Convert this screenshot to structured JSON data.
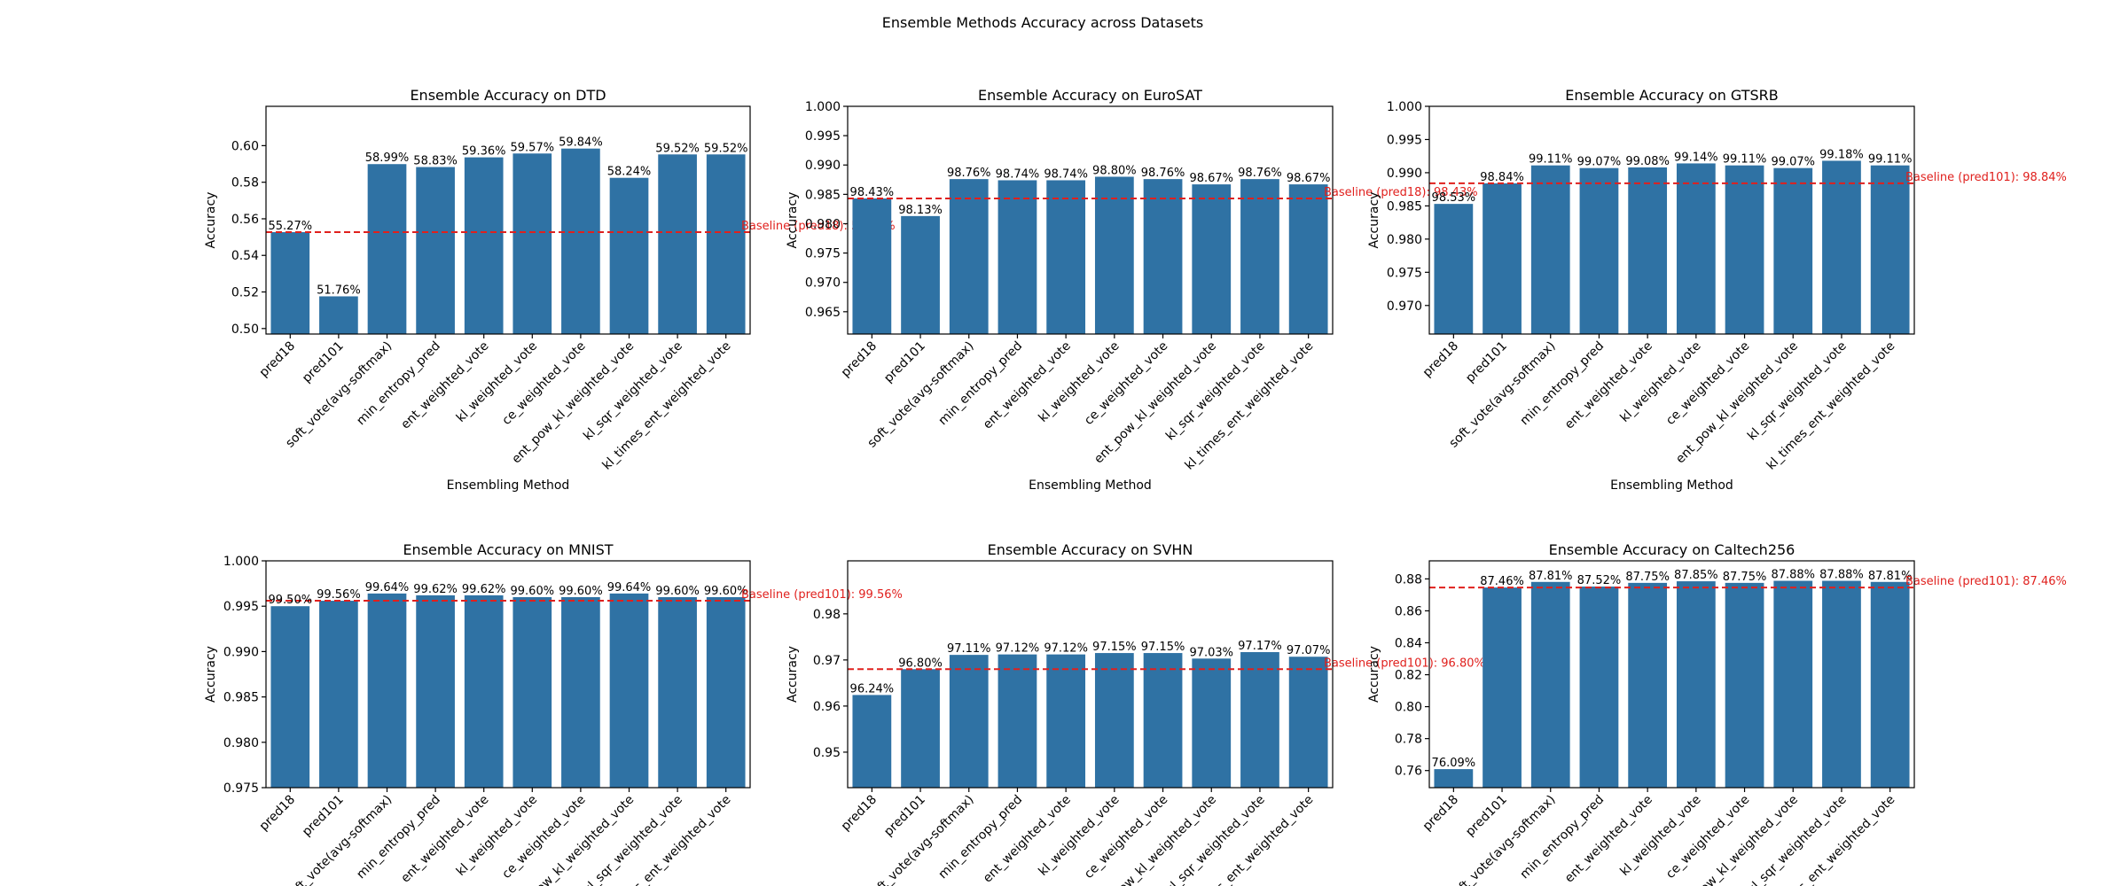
{
  "figure_title": "Ensemble Methods Accuracy across Datasets",
  "colors": {
    "bar": "#2f72a4",
    "baseline": "#e0201d",
    "axis": "#000000",
    "text": "#000000"
  },
  "chart_data": [
    {
      "type": "bar",
      "title": "Ensemble Accuracy on DTD",
      "xlabel": "Ensembling Method",
      "ylabel": "Accuracy",
      "categories": [
        "pred18",
        "pred101",
        "soft_vote(avg-softmax)",
        "min_entropy_pred",
        "ent_weighted_vote",
        "kl_weighted_vote",
        "ce_weighted_vote",
        "ent_pow_kl_weighted_vote",
        "kl_sqr_weighted_vote",
        "kl_times_ent_weighted_vote"
      ],
      "values": [
        0.5527,
        0.5176,
        0.5899,
        0.5883,
        0.5936,
        0.5957,
        0.5984,
        0.5824,
        0.5952,
        0.5952
      ],
      "data_labels": [
        "55.27%",
        "51.76%",
        "58.99%",
        "58.83%",
        "59.36%",
        "59.57%",
        "59.84%",
        "58.24%",
        "59.52%",
        "59.52%"
      ],
      "ylim": [
        0.497,
        0.6215
      ],
      "yticks": [
        0.5,
        0.52,
        0.54,
        0.56,
        0.58,
        0.6
      ],
      "ytick_labels": [
        "0.50",
        "0.52",
        "0.54",
        "0.56",
        "0.58",
        "0.60"
      ],
      "baseline": {
        "value": 0.5527,
        "label": "Baseline (pred18): 55.27%"
      }
    },
    {
      "type": "bar",
      "title": "Ensemble Accuracy on EuroSAT",
      "xlabel": "Ensembling Method",
      "ylabel": "Accuracy",
      "categories": [
        "pred18",
        "pred101",
        "soft_vote(avg-softmax)",
        "min_entropy_pred",
        "ent_weighted_vote",
        "kl_weighted_vote",
        "ce_weighted_vote",
        "ent_pow_kl_weighted_vote",
        "kl_sqr_weighted_vote",
        "kl_times_ent_weighted_vote"
      ],
      "values": [
        0.9843,
        0.9813,
        0.9876,
        0.9874,
        0.9874,
        0.988,
        0.9876,
        0.9867,
        0.9876,
        0.9867
      ],
      "data_labels": [
        "98.43%",
        "98.13%",
        "98.76%",
        "98.74%",
        "98.74%",
        "98.80%",
        "98.76%",
        "98.67%",
        "98.76%",
        "98.67%"
      ],
      "ylim": [
        0.9612,
        1.0
      ],
      "yticks": [
        0.965,
        0.97,
        0.975,
        0.98,
        0.985,
        0.99,
        0.995,
        1.0
      ],
      "ytick_labels": [
        "0.965",
        "0.970",
        "0.975",
        "0.980",
        "0.985",
        "0.990",
        "0.995",
        "1.000"
      ],
      "baseline": {
        "value": 0.9843,
        "label": "Baseline (pred18): 98.43%"
      }
    },
    {
      "type": "bar",
      "title": "Ensemble Accuracy on GTSRB",
      "xlabel": "Ensembling Method",
      "ylabel": "Accuracy",
      "categories": [
        "pred18",
        "pred101",
        "soft_vote(avg-softmax)",
        "min_entropy_pred",
        "ent_weighted_vote",
        "kl_weighted_vote",
        "ce_weighted_vote",
        "ent_pow_kl_weighted_vote",
        "kl_sqr_weighted_vote",
        "kl_times_ent_weighted_vote"
      ],
      "values": [
        0.9853,
        0.9884,
        0.9911,
        0.9907,
        0.9908,
        0.9914,
        0.9911,
        0.9907,
        0.9918,
        0.9911
      ],
      "data_labels": [
        "98.53%",
        "98.84%",
        "99.11%",
        "99.07%",
        "99.08%",
        "99.14%",
        "99.11%",
        "99.07%",
        "99.18%",
        "99.11%"
      ],
      "ylim": [
        0.9657,
        1.0
      ],
      "yticks": [
        0.97,
        0.975,
        0.98,
        0.985,
        0.99,
        0.995,
        1.0
      ],
      "ytick_labels": [
        "0.970",
        "0.975",
        "0.980",
        "0.985",
        "0.990",
        "0.995",
        "1.000"
      ],
      "baseline": {
        "value": 0.9884,
        "label": "Baseline (pred101): 98.84%"
      }
    },
    {
      "type": "bar",
      "title": "Ensemble Accuracy on MNIST",
      "xlabel": "",
      "ylabel": "Accuracy",
      "categories": [
        "pred18",
        "pred101",
        "soft_vote(avg-softmax)",
        "min_entropy_pred",
        "ent_weighted_vote",
        "kl_weighted_vote",
        "ce_weighted_vote",
        "ent_pow_kl_weighted_vote",
        "kl_sqr_weighted_vote",
        "kl_times_ent_weighted_vote"
      ],
      "values": [
        0.995,
        0.9956,
        0.9964,
        0.9962,
        0.9962,
        0.996,
        0.996,
        0.9964,
        0.996,
        0.996
      ],
      "data_labels": [
        "99.50%",
        "99.56%",
        "99.64%",
        "99.62%",
        "99.62%",
        "99.60%",
        "99.60%",
        "99.64%",
        "99.60%",
        "99.60%"
      ],
      "ylim": [
        0.975,
        1.0
      ],
      "yticks": [
        0.975,
        0.98,
        0.985,
        0.99,
        0.995,
        1.0
      ],
      "ytick_labels": [
        "0.975",
        "0.980",
        "0.985",
        "0.990",
        "0.995",
        "1.000"
      ],
      "baseline": {
        "value": 0.9956,
        "label": "Baseline (pred101): 99.56%"
      }
    },
    {
      "type": "bar",
      "title": "Ensemble Accuracy on SVHN",
      "xlabel": "",
      "ylabel": "Accuracy",
      "categories": [
        "pred18",
        "pred101",
        "soft_vote(avg-softmax)",
        "min_entropy_pred",
        "ent_weighted_vote",
        "kl_weighted_vote",
        "ce_weighted_vote",
        "ent_pow_kl_weighted_vote",
        "kl_sqr_weighted_vote",
        "kl_times_ent_weighted_vote"
      ],
      "values": [
        0.9624,
        0.968,
        0.9711,
        0.9712,
        0.9712,
        0.9715,
        0.9715,
        0.9703,
        0.9717,
        0.9707
      ],
      "data_labels": [
        "96.24%",
        "96.80%",
        "97.11%",
        "97.12%",
        "97.12%",
        "97.15%",
        "97.15%",
        "97.03%",
        "97.17%",
        "97.07%"
      ],
      "ylim": [
        0.9423,
        0.9915
      ],
      "yticks": [
        0.95,
        0.96,
        0.97,
        0.98
      ],
      "ytick_labels": [
        "0.95",
        "0.96",
        "0.97",
        "0.98"
      ],
      "baseline": {
        "value": 0.968,
        "label": "Baseline (pred101): 96.80%"
      }
    },
    {
      "type": "bar",
      "title": "Ensemble Accuracy on Caltech256",
      "xlabel": "",
      "ylabel": "Accuracy",
      "categories": [
        "pred18",
        "pred101",
        "soft_vote(avg-softmax)",
        "min_entropy_pred",
        "ent_weighted_vote",
        "kl_weighted_vote",
        "ce_weighted_vote",
        "ent_pow_kl_weighted_vote",
        "kl_sqr_weighted_vote",
        "kl_times_ent_weighted_vote"
      ],
      "values": [
        0.7609,
        0.8746,
        0.8781,
        0.8752,
        0.8775,
        0.8785,
        0.8775,
        0.8788,
        0.8788,
        0.8781
      ],
      "data_labels": [
        "76.09%",
        "87.46%",
        "87.81%",
        "87.52%",
        "87.75%",
        "87.85%",
        "87.75%",
        "87.88%",
        "87.88%",
        "87.81%"
      ],
      "ylim": [
        0.7493,
        0.8913
      ],
      "yticks": [
        0.76,
        0.78,
        0.8,
        0.82,
        0.84,
        0.86,
        0.88
      ],
      "ytick_labels": [
        "0.76",
        "0.78",
        "0.80",
        "0.82",
        "0.84",
        "0.86",
        "0.88"
      ],
      "baseline": {
        "value": 0.8746,
        "label": "Baseline (pred101): 87.46%"
      }
    }
  ]
}
